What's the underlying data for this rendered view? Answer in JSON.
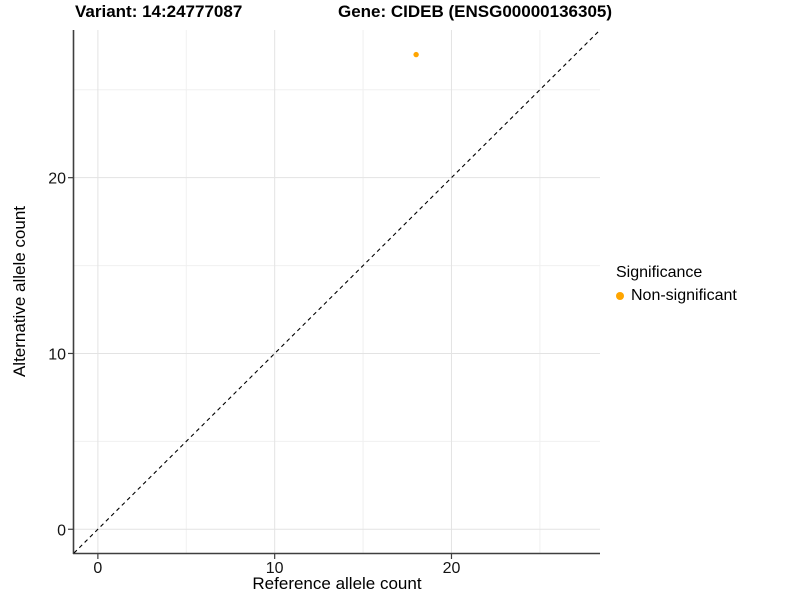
{
  "titles": {
    "variant": "Variant: 14:24777087",
    "gene": "Gene: CIDEB (ENSG00000136305)"
  },
  "axes": {
    "x_label": "Reference allele count",
    "y_label": "Alternative allele count"
  },
  "legend": {
    "title": "Significance",
    "position": "right",
    "items": [
      {
        "label": "Non-significant",
        "color": "#FFA500",
        "marker": "circle"
      }
    ]
  },
  "chart_data": {
    "type": "scatter",
    "title": "Variant: 14:24777087    Gene: CIDEB (ENSG00000136305)",
    "xlabel": "Reference allele count",
    "ylabel": "Alternative allele count",
    "xlim": [
      -1.35,
      28.4
    ],
    "ylim": [
      -1.35,
      28.4
    ],
    "xticks": [
      0,
      10,
      20
    ],
    "yticks": [
      0,
      10,
      20
    ],
    "minor_xticks": [
      5,
      15,
      25
    ],
    "minor_yticks": [
      5,
      15,
      25
    ],
    "grid": true,
    "legend_position": "right",
    "reference_line": {
      "type": "identity y=x",
      "style": "dashed",
      "color": "#000000"
    },
    "series": [
      {
        "name": "Non-significant",
        "color": "#FFA500",
        "marker": "circle",
        "points": [
          {
            "x": 18,
            "y": 27
          }
        ]
      }
    ]
  },
  "colors": {
    "background": "#FFFFFF",
    "grid_major": "#E3E3E3",
    "grid_minor": "#F0F0F0",
    "axis_line": "#3F3F3F",
    "tick_label": "#141414",
    "title_text": "#000000",
    "point": "#FFA500"
  }
}
